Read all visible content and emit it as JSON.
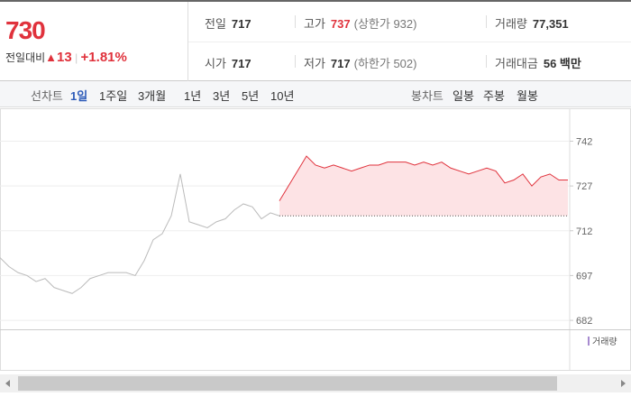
{
  "quote": {
    "price": "730",
    "change_label": "전일대비",
    "arrow": "▲",
    "change": "13",
    "change_pct": "+1.81%"
  },
  "stats": [
    [
      {
        "label": "전일",
        "value": "717"
      },
      {
        "label": "고가",
        "value": "737",
        "sub": "(상한가 932)"
      },
      {
        "label": "거래량",
        "value": "77,351"
      }
    ],
    [
      {
        "label": "시가",
        "value": "717"
      },
      {
        "label": "저가",
        "value": "717",
        "sub": "(하한가 502)"
      },
      {
        "label": "거래대금",
        "value": "56 백만"
      }
    ]
  ],
  "tabs": {
    "line_label": "선차트",
    "line": [
      "1일",
      "1주일",
      "3개월",
      "1년",
      "3년",
      "5년",
      "10년"
    ],
    "candle_label": "봉차트",
    "candle": [
      "일봉",
      "주봉",
      "월봉"
    ]
  },
  "chart_data": {
    "type": "line",
    "baseline": 717,
    "volume_label": "거래량",
    "ylim": [
      679,
      750
    ],
    "yticks": [
      742,
      727,
      712,
      697,
      682
    ],
    "grid": true,
    "series": [
      {
        "color": "#bbbbbb",
        "values": [
          703,
          700,
          698,
          697,
          695,
          696,
          693,
          692,
          691,
          693,
          696,
          697,
          698,
          698,
          698,
          697,
          702,
          709,
          711,
          717,
          731,
          715,
          714,
          713,
          715,
          716,
          719,
          721,
          720,
          716,
          718,
          717,
          null,
          null,
          null,
          null,
          null,
          null,
          null,
          null,
          null,
          null,
          null,
          null,
          null,
          null,
          null,
          null,
          null,
          null,
          null,
          null,
          null,
          null,
          null,
          null,
          null,
          null,
          null,
          null,
          null,
          null,
          null,
          null
        ]
      },
      {
        "color": "#e0323c",
        "fill": "#fde3e5",
        "values": [
          null,
          null,
          null,
          null,
          null,
          null,
          null,
          null,
          null,
          null,
          null,
          null,
          null,
          null,
          null,
          null,
          null,
          null,
          null,
          null,
          null,
          null,
          null,
          null,
          null,
          null,
          null,
          null,
          null,
          null,
          null,
          722,
          727,
          732,
          737,
          734,
          733,
          734,
          733,
          732,
          733,
          734,
          734,
          735,
          735,
          735,
          734,
          735,
          734,
          735,
          733,
          732,
          731,
          732,
          733,
          732,
          728,
          729,
          731,
          727,
          730,
          731,
          729,
          729
        ]
      }
    ]
  }
}
